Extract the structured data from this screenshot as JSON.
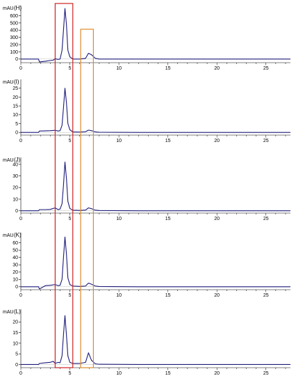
{
  "chart_data": [
    {
      "type": "line",
      "panel_label": "(H)",
      "ylabel": "mAU",
      "x_ticks": [
        0,
        5,
        10,
        15,
        20,
        25
      ],
      "y_ticks": [
        0,
        100,
        200,
        300,
        400,
        500,
        600
      ],
      "xlim": [
        0,
        27.5
      ],
      "ylim": [
        -50,
        740
      ],
      "series": [
        {
          "color": "#1a1a7a",
          "x": [
            0,
            1.8,
            1.9,
            2.5,
            3.0,
            3.3,
            3.5,
            3.8,
            4.0,
            4.2,
            4.35,
            4.5,
            4.65,
            4.8,
            5.0,
            5.3,
            6.0,
            6.6,
            6.9,
            7.2,
            7.6,
            8.0,
            12,
            16,
            20,
            24,
            27.5
          ],
          "y": [
            0,
            0,
            -40,
            -30,
            -20,
            -15,
            5,
            -5,
            0,
            120,
            400,
            700,
            480,
            120,
            30,
            0,
            0,
            10,
            80,
            60,
            10,
            0,
            0,
            0,
            0,
            0,
            0
          ]
        }
      ]
    },
    {
      "type": "line",
      "panel_label": "(I)",
      "ylabel": "mAU",
      "x_ticks": [
        0,
        5,
        10,
        15,
        20,
        25
      ],
      "y_ticks": [
        0,
        5,
        10,
        15,
        20,
        25
      ],
      "xlim": [
        0,
        27.5
      ],
      "ylim": [
        -1.5,
        30
      ],
      "series": [
        {
          "color": "#1a1a7a",
          "x": [
            0,
            1.8,
            1.9,
            2.5,
            3.0,
            3.5,
            3.8,
            4.0,
            4.2,
            4.35,
            4.5,
            4.65,
            4.8,
            5.0,
            5.3,
            6.0,
            6.6,
            6.9,
            7.2,
            7.6,
            8.0,
            12,
            16,
            20,
            24,
            27.5
          ],
          "y": [
            0,
            0,
            0.8,
            0.9,
            1.0,
            1.2,
            0.8,
            1.0,
            4,
            14,
            25,
            17,
            5,
            1.5,
            0.3,
            0.2,
            0.4,
            1.3,
            1.0,
            0.3,
            0.1,
            0,
            0,
            0,
            0,
            0
          ]
        }
      ]
    },
    {
      "type": "line",
      "panel_label": "(J)",
      "ylabel": "mAU",
      "x_ticks": [
        0,
        5,
        10,
        15,
        20,
        25
      ],
      "y_ticks": [
        0,
        10,
        20,
        30,
        40
      ],
      "xlim": [
        0,
        27.5
      ],
      "ylim": [
        -2,
        46
      ],
      "series": [
        {
          "color": "#1a1a7a",
          "x": [
            0,
            1.8,
            1.9,
            2.5,
            3.0,
            3.5,
            3.8,
            4.0,
            4.2,
            4.35,
            4.5,
            4.65,
            4.8,
            5.0,
            5.3,
            6.0,
            6.6,
            6.9,
            7.2,
            7.6,
            8.0,
            12,
            16,
            20,
            24,
            27.5
          ],
          "y": [
            0,
            0,
            1.0,
            1.0,
            1.2,
            2.5,
            1.0,
            1.5,
            6,
            22,
            42,
            28,
            8,
            2,
            0.5,
            0.3,
            0.6,
            2.5,
            1.8,
            0.5,
            0.2,
            0,
            0,
            0,
            0,
            0
          ]
        }
      ]
    },
    {
      "type": "line",
      "panel_label": "(K)",
      "ylabel": "mAU",
      "x_ticks": [
        0,
        5,
        10,
        15,
        20,
        25
      ],
      "y_ticks": [
        0,
        10,
        20,
        30,
        40,
        50,
        60
      ],
      "xlim": [
        0,
        27.5
      ],
      "ylim": [
        -4,
        74
      ],
      "series": [
        {
          "color": "#1a1a7a",
          "x": [
            0,
            1.8,
            1.9,
            2.5,
            3.0,
            3.5,
            3.8,
            4.0,
            4.2,
            4.35,
            4.5,
            4.65,
            4.8,
            5.0,
            5.3,
            6.0,
            6.6,
            6.9,
            7.2,
            7.6,
            8.0,
            12,
            16,
            20,
            24,
            27.5
          ],
          "y": [
            0,
            0,
            -3,
            1.5,
            2.0,
            3.0,
            1.5,
            2.0,
            10,
            40,
            68,
            45,
            12,
            3,
            1,
            0.5,
            1.0,
            5.0,
            3.5,
            1.0,
            0.3,
            0,
            0,
            0,
            0,
            0
          ]
        }
      ]
    },
    {
      "type": "line",
      "panel_label": "(L)",
      "ylabel": "mAU",
      "x_ticks": [
        0,
        5,
        10,
        15,
        20,
        25
      ],
      "y_ticks": [
        0,
        5,
        10,
        15,
        20
      ],
      "xlim": [
        0,
        27.5
      ],
      "ylim": [
        -1.5,
        26
      ],
      "series": [
        {
          "color": "#1a1a7a",
          "x": [
            0,
            1.8,
            1.9,
            2.5,
            3.0,
            3.3,
            3.5,
            3.8,
            4.0,
            4.2,
            4.35,
            4.5,
            4.65,
            4.8,
            5.0,
            5.3,
            6.0,
            6.6,
            6.9,
            7.2,
            7.6,
            8.0,
            12,
            16,
            20,
            24,
            27.5
          ],
          "y": [
            0,
            0,
            0.5,
            0.8,
            1.0,
            1.5,
            0.5,
            1.0,
            0.8,
            4,
            14,
            23,
            14,
            4,
            1,
            0.5,
            0.5,
            1.0,
            5.5,
            2.0,
            0.3,
            0.1,
            0,
            0,
            0,
            0,
            0
          ]
        }
      ]
    }
  ],
  "highlights": [
    {
      "color": "#cc2222",
      "x_from": 3.5,
      "x_to": 5.3
    },
    {
      "color": "#e08a2a",
      "x_from": 6.1,
      "x_to": 7.4
    }
  ]
}
